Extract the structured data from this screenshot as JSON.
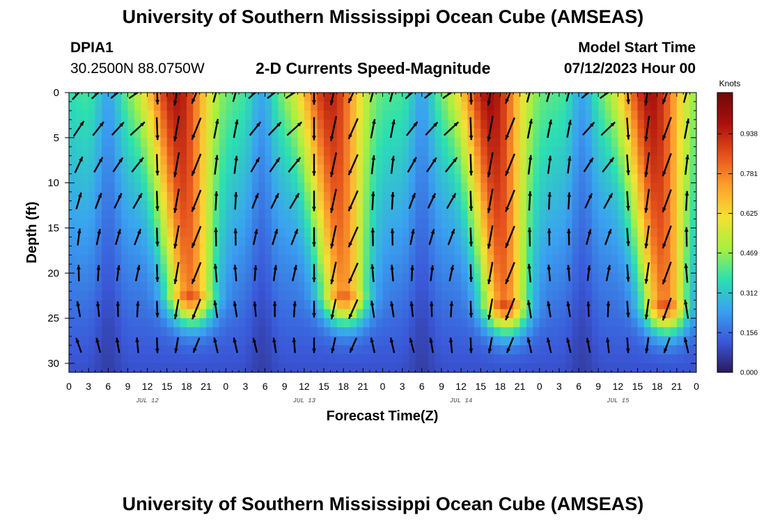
{
  "header": {
    "title": "University of Southern Mississippi Ocean Cube (AMSEAS)",
    "station": "DPIA1",
    "coordinates": "30.2500N  88.0750W",
    "plot_title": "2-D Currents Speed-Magnitude",
    "model_start_label": "Model Start Time",
    "model_start_value": "07/12/2023 Hour 00"
  },
  "footer": {
    "title": "University of Southern Mississippi Ocean Cube (AMSEAS)"
  },
  "colors": {
    "arrow": "#000000",
    "colormap": [
      "#2a1a5e",
      "#3a58d8",
      "#3aa2f0",
      "#2ce0b0",
      "#a8f040",
      "#f4e034",
      "#fda02e",
      "#e4501c",
      "#a8100c",
      "#6e0a08"
    ]
  },
  "chart_data": {
    "type": "heatmap",
    "title": "2-D Currents Speed-Magnitude",
    "xlabel": "Forecast Time(Z)",
    "ylabel": "Depth (ft)",
    "x_ticks": [
      "0",
      "3",
      "6",
      "9",
      "12",
      "15",
      "18",
      "21",
      "0",
      "3",
      "6",
      "9",
      "12",
      "15",
      "18",
      "21",
      "0",
      "3",
      "6",
      "9",
      "12",
      "15",
      "18",
      "21",
      "0",
      "3",
      "6",
      "9",
      "12",
      "15",
      "18",
      "21",
      "0"
    ],
    "x_range_hours": [
      0,
      96
    ],
    "date_labels": [
      {
        "label": "JUL 12",
        "hour": 12
      },
      {
        "label": "JUL 13",
        "hour": 36
      },
      {
        "label": "JUL 14",
        "hour": 60
      },
      {
        "label": "JUL 15",
        "hour": 84
      }
    ],
    "y_ticks": [
      0,
      5,
      10,
      15,
      20,
      25,
      30
    ],
    "y_range_ft": [
      0,
      31
    ],
    "colorbar": {
      "unit": "Knots",
      "ticks": [
        "0.938",
        "0.781",
        "0.625",
        "0.469",
        "0.312",
        "0.156",
        "0.000"
      ],
      "range": [
        0.0,
        1.1
      ]
    },
    "speed_peaks": [
      {
        "name": "Jul 12 peak",
        "center_hour": 16.5,
        "max_knots": 1.05,
        "max_depth_ft": 22
      },
      {
        "name": "Jul 13 peak",
        "center_hour": 40,
        "max_knots": 1.02,
        "max_depth_ft": 22
      },
      {
        "name": "Jul 14 peak",
        "center_hour": 64.5,
        "max_knots": 1.07,
        "max_depth_ft": 23
      },
      {
        "name": "Jul 15 peak",
        "center_hour": 89,
        "max_knots": 1.06,
        "max_depth_ft": 23
      }
    ],
    "vector_depths_ft": [
      0,
      4,
      8,
      12,
      16,
      20,
      24,
      28
    ],
    "vector_hours": [
      1.5,
      4.5,
      7.5,
      10.5,
      13.5,
      16.5,
      19.5,
      22.5,
      25.5,
      28.5,
      31.5,
      34.5,
      37.5,
      40.5,
      43.5,
      46.5,
      49.5,
      52.5,
      55.5,
      58.5,
      61.5,
      64.5,
      67.5,
      70.5,
      73.5,
      76.5,
      79.5,
      82.5,
      85.5,
      88.5,
      91.5,
      94.5
    ]
  }
}
